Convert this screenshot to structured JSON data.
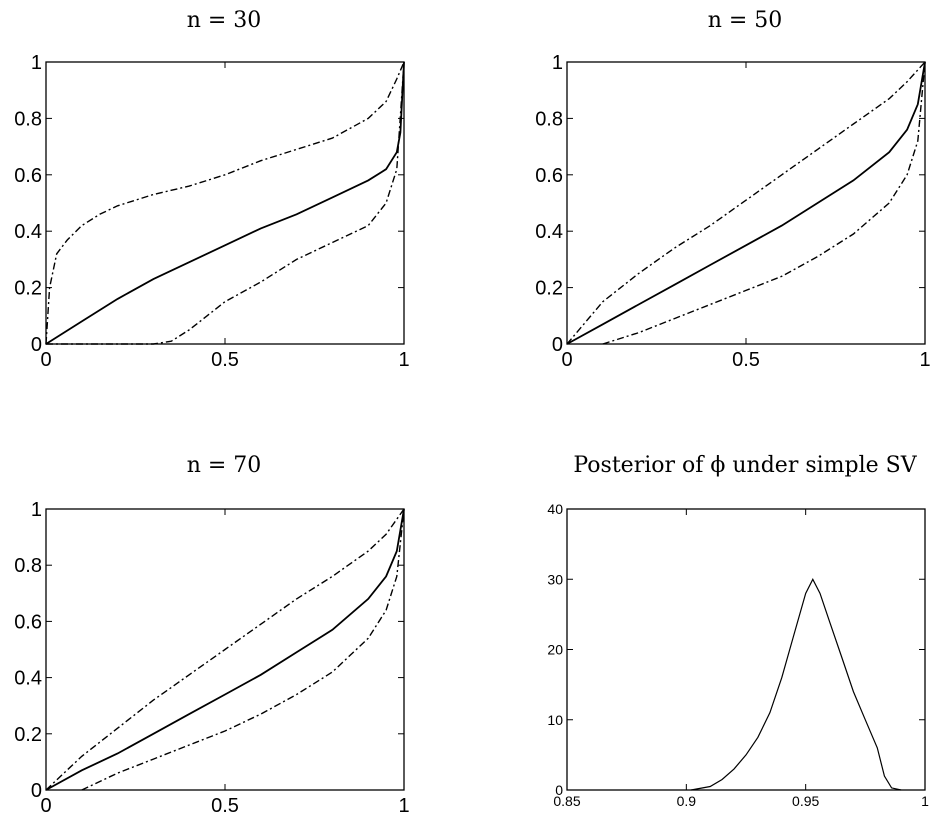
{
  "chart_data": [
    {
      "type": "line",
      "title": "n = 30",
      "xlim": [
        0,
        1
      ],
      "ylim": [
        0,
        1
      ],
      "xticks": [
        0,
        0.5,
        1
      ],
      "xtick_labels": [
        "0",
        "0.5",
        "1"
      ],
      "yticks": [
        0,
        0.2,
        0.4,
        0.6,
        0.8,
        1
      ],
      "ytick_labels": [
        "0",
        "0.2",
        "0.4",
        "0.6",
        "0.8",
        "1"
      ],
      "grid": false,
      "series": [
        {
          "style": "solid",
          "x": [
            0,
            0.1,
            0.2,
            0.3,
            0.4,
            0.5,
            0.6,
            0.7,
            0.8,
            0.9,
            0.95,
            0.98,
            0.99,
            1
          ],
          "y": [
            0,
            0.08,
            0.16,
            0.23,
            0.29,
            0.35,
            0.41,
            0.46,
            0.52,
            0.58,
            0.62,
            0.68,
            0.75,
            1
          ]
        },
        {
          "style": "dashdot",
          "x": [
            0,
            0.01,
            0.03,
            0.06,
            0.1,
            0.15,
            0.2,
            0.3,
            0.4,
            0.5,
            0.6,
            0.7,
            0.8,
            0.9,
            0.95,
            0.98,
            1
          ],
          "y": [
            0,
            0.2,
            0.32,
            0.37,
            0.42,
            0.46,
            0.49,
            0.53,
            0.56,
            0.6,
            0.65,
            0.69,
            0.73,
            0.8,
            0.86,
            0.94,
            1
          ]
        },
        {
          "style": "dashdot",
          "x": [
            0,
            0.2,
            0.3,
            0.35,
            0.4,
            0.45,
            0.5,
            0.6,
            0.7,
            0.8,
            0.9,
            0.95,
            0.98,
            1
          ],
          "y": [
            0,
            0,
            0,
            0.01,
            0.05,
            0.1,
            0.15,
            0.22,
            0.3,
            0.36,
            0.42,
            0.5,
            0.62,
            1
          ]
        }
      ]
    },
    {
      "type": "line",
      "title": "n = 50",
      "xlim": [
        0,
        1
      ],
      "ylim": [
        0,
        1
      ],
      "xticks": [
        0,
        0.5,
        1
      ],
      "xtick_labels": [
        "0",
        "0.5",
        "1"
      ],
      "yticks": [
        0,
        0.2,
        0.4,
        0.6,
        0.8,
        1
      ],
      "ytick_labels": [
        "0",
        "0.2",
        "0.4",
        "0.6",
        "0.8",
        "1"
      ],
      "grid": false,
      "series": [
        {
          "style": "solid",
          "x": [
            0,
            0.1,
            0.2,
            0.3,
            0.4,
            0.5,
            0.6,
            0.7,
            0.8,
            0.9,
            0.95,
            0.98,
            1
          ],
          "y": [
            0,
            0.07,
            0.14,
            0.21,
            0.28,
            0.35,
            0.42,
            0.5,
            0.58,
            0.68,
            0.76,
            0.85,
            1
          ]
        },
        {
          "style": "dashdot",
          "x": [
            0,
            0.1,
            0.2,
            0.3,
            0.4,
            0.5,
            0.6,
            0.7,
            0.8,
            0.9,
            0.95,
            1
          ],
          "y": [
            0,
            0.15,
            0.25,
            0.34,
            0.42,
            0.51,
            0.6,
            0.69,
            0.78,
            0.87,
            0.93,
            1
          ]
        },
        {
          "style": "dashdot",
          "x": [
            0.1,
            0.2,
            0.3,
            0.4,
            0.5,
            0.6,
            0.7,
            0.8,
            0.9,
            0.95,
            0.98,
            1
          ],
          "y": [
            0,
            0.04,
            0.09,
            0.14,
            0.19,
            0.24,
            0.31,
            0.39,
            0.5,
            0.6,
            0.72,
            1
          ]
        }
      ]
    },
    {
      "type": "line",
      "title": "n = 70",
      "xlim": [
        0,
        1
      ],
      "ylim": [
        0,
        1
      ],
      "xticks": [
        0,
        0.5,
        1
      ],
      "xtick_labels": [
        "0",
        "0.5",
        "1"
      ],
      "yticks": [
        0,
        0.2,
        0.4,
        0.6,
        0.8,
        1
      ],
      "ytick_labels": [
        "0",
        "0.2",
        "0.4",
        "0.6",
        "0.8",
        "1"
      ],
      "grid": false,
      "series": [
        {
          "style": "solid",
          "x": [
            0,
            0.1,
            0.2,
            0.3,
            0.4,
            0.5,
            0.6,
            0.7,
            0.8,
            0.9,
            0.95,
            0.98,
            1
          ],
          "y": [
            0,
            0.07,
            0.13,
            0.2,
            0.27,
            0.34,
            0.41,
            0.49,
            0.57,
            0.68,
            0.76,
            0.85,
            1
          ]
        },
        {
          "style": "dashdot",
          "x": [
            0,
            0.1,
            0.2,
            0.3,
            0.4,
            0.5,
            0.6,
            0.7,
            0.8,
            0.9,
            0.95,
            1
          ],
          "y": [
            0,
            0.12,
            0.22,
            0.32,
            0.41,
            0.5,
            0.59,
            0.68,
            0.76,
            0.85,
            0.91,
            1
          ]
        },
        {
          "style": "dashdot",
          "x": [
            0.1,
            0.2,
            0.3,
            0.4,
            0.5,
            0.6,
            0.7,
            0.8,
            0.9,
            0.95,
            0.98,
            1
          ],
          "y": [
            0,
            0.06,
            0.11,
            0.16,
            0.21,
            0.27,
            0.34,
            0.42,
            0.54,
            0.64,
            0.76,
            1
          ]
        }
      ]
    },
    {
      "type": "line",
      "title": "Posterior of ϕ under simple SV",
      "xlim": [
        0.85,
        1
      ],
      "ylim": [
        0,
        40
      ],
      "xticks": [
        0.85,
        0.9,
        0.95,
        1
      ],
      "xtick_labels": [
        "0.85",
        "0.9",
        "0.95",
        "1"
      ],
      "yticks": [
        0,
        10,
        20,
        30,
        40
      ],
      "ytick_labels": [
        "0",
        "10",
        "20",
        "30",
        "40"
      ],
      "grid": false,
      "series": [
        {
          "style": "thin",
          "x": [
            0.902,
            0.91,
            0.915,
            0.92,
            0.925,
            0.93,
            0.935,
            0.94,
            0.945,
            0.95,
            0.953,
            0.956,
            0.96,
            0.965,
            0.97,
            0.975,
            0.98,
            0.983,
            0.986,
            0.99
          ],
          "y": [
            0,
            0.5,
            1.5,
            3,
            5,
            7.5,
            11,
            16,
            22,
            28,
            30,
            28,
            24,
            19,
            14,
            10,
            6,
            2,
            0.3,
            0
          ]
        }
      ]
    }
  ]
}
